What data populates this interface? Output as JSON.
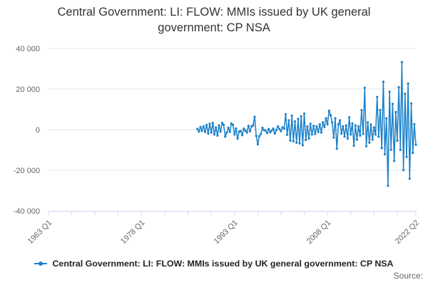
{
  "title": {
    "line1": "Central Government: LI: FLOW: MMIs issued by UK general",
    "line2": "government: CP NSA"
  },
  "legend": {
    "label": "Central Government: LI: FLOW: MMIs issued by UK general government: CP NSA"
  },
  "source_label": "Source:",
  "colors": {
    "series_line": "#1a80c9",
    "axis_line": "#ccd6eb",
    "grid_line": "#e6e6e6",
    "tick_text": "#666666",
    "title_text": "#333333",
    "legend_text": "#222222"
  },
  "chart_data": {
    "type": "line",
    "title": "Central Government: LI: FLOW: MMIs issued by UK general government: CP NSA",
    "legend_position": "bottom",
    "grid": "horizontal-only",
    "y_axis": {
      "range": [
        -40000,
        40000
      ],
      "ticks": [
        {
          "value": 40000,
          "label": "40 000"
        },
        {
          "value": 20000,
          "label": "20 000"
        },
        {
          "value": 0,
          "label": "0"
        },
        {
          "value": -20000,
          "label": "-20 000"
        },
        {
          "value": -40000,
          "label": "-40 000"
        }
      ]
    },
    "x_axis": {
      "total_quarters": 237,
      "tick_interval_quarters": 15,
      "labels": [
        {
          "label": "1963 Q1",
          "quarter": 0
        },
        {
          "label": "1978 Q1",
          "quarter": 60
        },
        {
          "label": "1993 Q1",
          "quarter": 120
        },
        {
          "label": "2008 Q1",
          "quarter": 180
        },
        {
          "label": "2022 Q2",
          "quarter": 237
        }
      ]
    },
    "series": [
      {
        "name": "Central Government: LI: FLOW: MMIs issued by UK general government: CP NSA",
        "start_period": "1987 Q1",
        "start_quarter": 96,
        "values": [
          400,
          -900,
          1300,
          -600,
          1600,
          -1100,
          2400,
          -1900,
          2900,
          -1400,
          3300,
          -2400,
          1100,
          -2900,
          2100,
          -900,
          3400,
          2400,
          -3400,
          -1400,
          900,
          -1100,
          3100,
          2300,
          -2400,
          600,
          -4400,
          -900,
          -700,
          -2700,
          500,
          -500,
          -1400,
          1900,
          -800,
          1600,
          2100,
          6300,
          -3100,
          -7200,
          -3200,
          -2100,
          900,
          -200,
          -400,
          -1700,
          300,
          -1300,
          -500,
          500,
          -1900,
          -200,
          1600,
          300,
          -700,
          1100,
          500,
          7600,
          -2500,
          4600,
          -5400,
          6900,
          -5700,
          4100,
          -6400,
          5300,
          -6700,
          6600,
          -7700,
          7900,
          -5100,
          1600,
          -4400,
          2900,
          -2400,
          1900,
          -2100,
          1600,
          -1100,
          2600,
          -1400,
          3600,
          1300,
          5600,
          2600,
          9300,
          7100,
          3600,
          -3900,
          5600,
          -9400,
          2600,
          4600,
          -1900,
          1600,
          -3400,
          2100,
          -4400,
          6100,
          -2400,
          3100,
          -7900,
          2100,
          -4900,
          1600,
          -2900,
          9600,
          -2100,
          20600,
          -8100,
          3600,
          -6400,
          2600,
          -4900,
          1100,
          -2400,
          16100,
          -3400,
          9700,
          -9100,
          23600,
          -12100,
          5600,
          -27600,
          18700,
          -9900,
          12700,
          -15400,
          8700,
          -5400,
          20900,
          -9900,
          33300,
          -19900,
          17700,
          -13400,
          22700,
          -24100,
          12900,
          -11400,
          2700,
          -7400
        ]
      }
    ]
  }
}
